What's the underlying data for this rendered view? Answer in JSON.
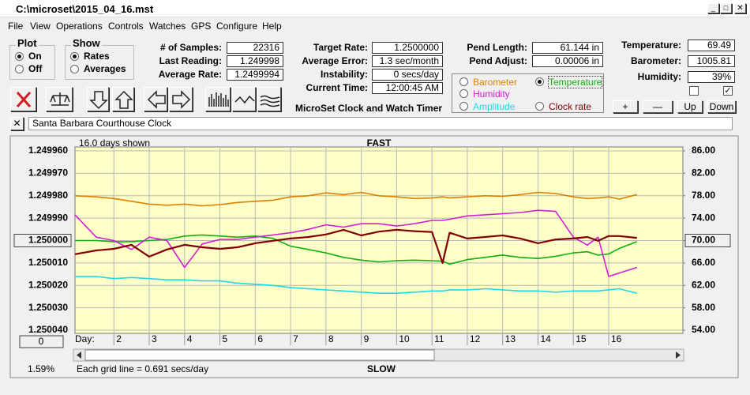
{
  "window": {
    "title": "C:\\microset\\2015_04_16.mst"
  },
  "menu": [
    "File",
    "View",
    "Operations",
    "Controls",
    "Watches",
    "GPS",
    "Configure",
    "Help"
  ],
  "plot_group": {
    "title": "Plot",
    "options": [
      "On",
      "Off"
    ],
    "selected": 0
  },
  "show_group": {
    "title": "Show",
    "options": [
      "Rates",
      "Averages"
    ],
    "selected": 0
  },
  "stats": [
    {
      "label": "# of Samples:",
      "value": "22316"
    },
    {
      "label": "Last Reading:",
      "value": "1.249998"
    },
    {
      "label": "Average Rate:",
      "value": "1.2499994"
    }
  ],
  "rates": [
    {
      "label": "Target Rate:",
      "value": "1.2500000"
    },
    {
      "label": "Average Error:",
      "value": "1.3 sec/month"
    },
    {
      "label": "Instability:",
      "value": "0 secs/day"
    },
    {
      "label": "Current Time:",
      "value": "12:00:45 AM"
    }
  ],
  "app_title": "MicroSet Clock and Watch Timer",
  "pendulum": [
    {
      "label": "Pend Length:",
      "value": "61.144 in"
    },
    {
      "label": "Pend Adjust:",
      "value": "0.00006 in"
    }
  ],
  "sensors": [
    {
      "label": "Temperature:",
      "value": "69.49"
    },
    {
      "label": "Barometer:",
      "value": "1005.81"
    },
    {
      "label": "Humidity:",
      "value": "39%"
    }
  ],
  "buttons": [
    "+",
    "—",
    "Up",
    "Down"
  ],
  "clock_name": "Santa Barbara Courthouse Clock",
  "chart_data": {
    "type": "line",
    "days_shown": "16.0 days shown",
    "top_label": "FAST",
    "bottom_label": "SLOW",
    "x_label": "Day:",
    "scroll_value": "0",
    "zoom": "1.59%",
    "grid_note": "Each grid line = 0.691 secs/day",
    "selected_series": 1,
    "grid": true,
    "xlim": [
      0.9,
      18.1
    ],
    "xticks": [
      2,
      3,
      4,
      5,
      6,
      7,
      8,
      9,
      10,
      11,
      12,
      13,
      14,
      15,
      16
    ],
    "ylim": [
      1.25004,
      1.24996
    ],
    "yticks": [
      {
        "value": 1.24996,
        "label": "1.249960"
      },
      {
        "value": 1.24997,
        "label": "1.249970"
      },
      {
        "value": 1.24998,
        "label": "1.249980"
      },
      {
        "value": 1.24999,
        "label": "1.249990"
      },
      {
        "value": 1.25,
        "label": "1.250000"
      },
      {
        "value": 1.25001,
        "label": "1.250010"
      },
      {
        "value": 1.25002,
        "label": "1.250020"
      },
      {
        "value": 1.25003,
        "label": "1.250030"
      },
      {
        "value": 1.25004,
        "label": "1.250040"
      }
    ],
    "y2lim": [
      54,
      86
    ],
    "y2ticks": [
      {
        "value": 86,
        "label": "86.00"
      },
      {
        "value": 82,
        "label": "82.00"
      },
      {
        "value": 78,
        "label": "78.00"
      },
      {
        "value": 74,
        "label": "74.00"
      },
      {
        "value": 70,
        "label": "70.00"
      },
      {
        "value": 66,
        "label": "66.00"
      },
      {
        "value": 62,
        "label": "62.00"
      },
      {
        "value": 58,
        "label": "58.00"
      },
      {
        "value": 54,
        "label": "54.00"
      }
    ],
    "x": [
      0.9,
      1.5,
      2,
      2.5,
      3,
      3.5,
      4,
      4.5,
      5,
      5.5,
      6,
      6.5,
      7,
      7.5,
      8,
      8.5,
      9,
      9.5,
      10,
      10.5,
      11,
      11.3,
      11.5,
      12,
      12.5,
      13,
      13.5,
      14,
      14.5,
      15,
      15.4,
      15.7,
      16,
      16.3,
      16.8
    ],
    "series": [
      {
        "name": "Barometer",
        "color": "#e08000",
        "axis": "y2",
        "values": [
          78,
          77.8,
          77.5,
          77,
          76.5,
          76.3,
          76.5,
          76.2,
          76.4,
          76.8,
          77,
          77.2,
          77.8,
          78,
          78.5,
          78.2,
          78.6,
          78,
          77.8,
          77.5,
          77.6,
          77.8,
          77.6,
          77.8,
          78,
          77.9,
          78.2,
          78.6,
          78.4,
          77.8,
          77.5,
          77.6,
          77.8,
          77.4,
          78.2
        ]
      },
      {
        "name": "Temperature",
        "color": "#10b010",
        "axis": "y2",
        "values": [
          70,
          70,
          69.8,
          69.8,
          70,
          70.2,
          70.8,
          71,
          70.8,
          70.6,
          70.8,
          70.4,
          69,
          68.4,
          67.8,
          67,
          66.5,
          66.2,
          66.4,
          66.5,
          66.4,
          66.3,
          65.8,
          66.6,
          67,
          67.4,
          67,
          66.8,
          67.2,
          67.8,
          68,
          67.4,
          67.6,
          68.6,
          69.8
        ]
      },
      {
        "name": "Humidity",
        "color": "#d020d0",
        "axis": "y2",
        "values": [
          74.6,
          70.6,
          70,
          68.4,
          70.6,
          70,
          65.2,
          69.4,
          70.2,
          70.2,
          70.6,
          71,
          71.4,
          72,
          72.8,
          72.4,
          73,
          73,
          72.6,
          73,
          73.6,
          73.6,
          73.8,
          74.4,
          74.6,
          74.8,
          75,
          75.4,
          75.2,
          70.6,
          69.2,
          70.6,
          63.6,
          64.2,
          65.2
        ]
      },
      {
        "name": "Amplitude",
        "color": "#20d8e8",
        "axis": "y2",
        "values": [
          63.6,
          63.6,
          63.2,
          63.4,
          63.2,
          63,
          63,
          62.8,
          62.8,
          62.4,
          62.2,
          62,
          61.6,
          61.4,
          61.2,
          61,
          60.8,
          60.6,
          60.6,
          60.8,
          61,
          61,
          61.2,
          61.2,
          61.4,
          61.2,
          61,
          61,
          60.8,
          61,
          61,
          61,
          61.2,
          61.4,
          60.6
        ]
      },
      {
        "name": "Clock rate",
        "color": "#800000",
        "axis": "y",
        "values": [
          1.2500061,
          1.2500044,
          1.2500037,
          1.2500019,
          1.2500072,
          1.250004,
          1.2500019,
          1.250003,
          1.2500037,
          1.250003,
          1.2500012,
          1.2500001,
          1.2499991,
          1.2499984,
          1.2499973,
          1.2499952,
          1.2499977,
          1.249996,
          1.2499952,
          1.2499958,
          1.2499962,
          1.25001,
          1.2499965,
          1.2499991,
          1.2499984,
          1.2499977,
          1.2499991,
          1.2500012,
          1.2499995,
          1.2499991,
          1.2499984,
          1.2500001,
          1.249998,
          1.249998,
          1.2499988
        ]
      }
    ]
  }
}
